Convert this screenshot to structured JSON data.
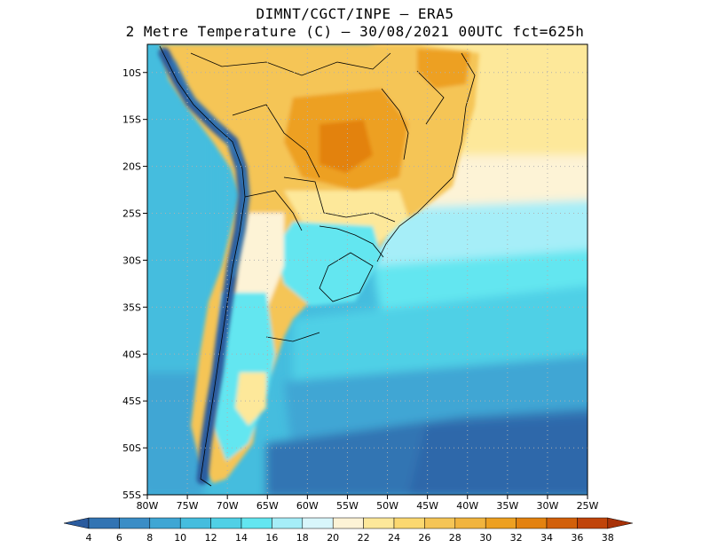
{
  "title": {
    "line1": "DIMNT/CGCT/INPE –  ERA5",
    "line2": "2 Metre Temperature (C) –  30/08/2021 00UTC fct=625h"
  },
  "map": {
    "region": "South America",
    "lon_range": [
      -80,
      -25
    ],
    "lat_range": [
      -55,
      -7
    ],
    "lat_ticks": [
      "10S",
      "15S",
      "20S",
      "25S",
      "30S",
      "35S",
      "40S",
      "45S",
      "50S",
      "55S"
    ],
    "lon_ticks": [
      "80W",
      "75W",
      "70W",
      "65W",
      "60W",
      "55W",
      "50W",
      "45W",
      "40W",
      "35W",
      "30W",
      "25W"
    ],
    "grid": "dotted",
    "variable_unit": "C"
  },
  "colorbar": {
    "labels": [
      "4",
      "6",
      "8",
      "10",
      "12",
      "14",
      "16",
      "18",
      "20",
      "22",
      "24",
      "26",
      "28",
      "30",
      "32",
      "34",
      "36",
      "38"
    ],
    "colors": [
      "#2a5b9e",
      "#3274b3",
      "#3a8dc6",
      "#3fa6d4",
      "#45bdde",
      "#50d0e6",
      "#63e6f0",
      "#a6eef8",
      "#d8f6fb",
      "#fdf3d6",
      "#fde89a",
      "#fbd870",
      "#f5c556",
      "#f1b43e",
      "#eda021",
      "#e3820f",
      "#d2600a",
      "#c0440a",
      "#a83208"
    ]
  },
  "colors": {
    "cold_ocean": "#2f68aa",
    "cool_ocean": "#4fd0e4",
    "warm_land": "#f5c556",
    "hot_land": "#eda021",
    "andes": "#2a5b9e"
  }
}
